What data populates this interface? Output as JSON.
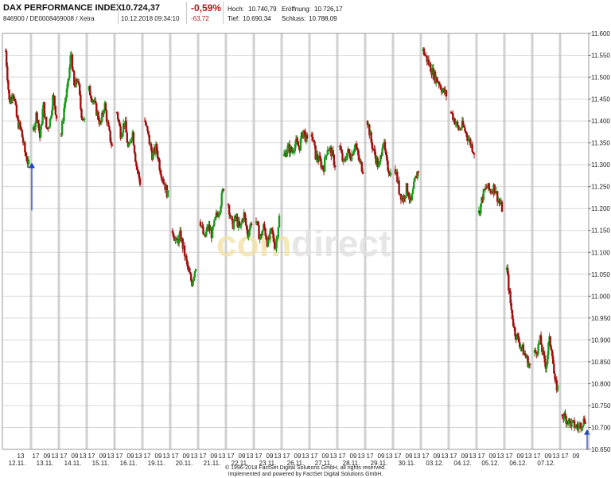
{
  "header": {
    "title": "DAX PERFORMANCE INDEX",
    "subtitle": "846900 / DE0008469008 / Xetra",
    "price": "10.724,37",
    "datetime": "10.12.2018 09:34:10",
    "change_pct": "-0,59%",
    "change_abs": "-63,72",
    "hoch_label": "Hoch:",
    "hoch_value": "10.740,79",
    "eroeffnung_label": "Eröffnung:",
    "eroeffnung_value": "10.726,17",
    "tief_label": "Tief:",
    "tief_value": "10.690,34",
    "schluss_label": "Schluss:",
    "schluss_value": "10.788,09"
  },
  "watermark": {
    "part1": "com",
    "part2": "direct"
  },
  "footer": {
    "line1": "© 1996-2018 FactSet Digital Solutions GmbH, all rights reserved.",
    "line2": "Implemented and powered by FactSet Digital Solutions GmbH."
  },
  "colors": {
    "up": "#1a9a1a",
    "down": "#a01010",
    "grid": "#d8d8d8",
    "day_sep": "#bdbdbd",
    "arrow": "#2244cc"
  },
  "chart_data": {
    "type": "candlestick",
    "ylim": [
      10650,
      11600
    ],
    "yticks": [
      10650,
      10700,
      10750,
      10800,
      10850,
      10900,
      10950,
      11000,
      11050,
      11100,
      11150,
      11200,
      11250,
      11300,
      11350,
      11400,
      11450,
      11500,
      11550,
      11600
    ],
    "ytick_labels": [
      "10.650",
      "10.700",
      "10.750",
      "10.800",
      "10.850",
      "10.900",
      "10.950",
      "11.000",
      "11.050",
      "11.100",
      "11.150",
      "11.200",
      "11.250",
      "11.300",
      "11.350",
      "11.400",
      "11.450",
      "11.500",
      "11.550",
      "11.600"
    ],
    "days": [
      {
        "date": "12.11.",
        "hours": [
          "13"
        ],
        "path": [
          11560,
          11440,
          11470,
          11400,
          11380,
          11330,
          11300
        ]
      },
      {
        "date": "13.11.",
        "hours": [
          "17",
          "09",
          "13"
        ],
        "path": [
          11380,
          11420,
          11360,
          11440,
          11380,
          11400,
          11460,
          11410
        ]
      },
      {
        "date": "14.11.",
        "hours": [
          "17",
          "09",
          "13"
        ],
        "path": [
          11370,
          11440,
          11480,
          11560,
          11470,
          11500,
          11420,
          11400
        ]
      },
      {
        "date": "15.11.",
        "hours": [
          "17",
          "09",
          "13"
        ],
        "path": [
          11470,
          11450,
          11420,
          11390,
          11440,
          11380,
          11340
        ]
      },
      {
        "date": "16.11.",
        "hours": [
          "17",
          "09",
          "13"
        ],
        "path": [
          11420,
          11370,
          11400,
          11330,
          11380,
          11300,
          11260
        ]
      },
      {
        "date": "19.11.",
        "hours": [
          "17",
          "09",
          "13"
        ],
        "path": [
          11400,
          11360,
          11320,
          11340,
          11290,
          11260,
          11230
        ]
      },
      {
        "date": "20.11.",
        "hours": [
          "17",
          "09",
          "13"
        ],
        "path": [
          11150,
          11120,
          11140,
          11100,
          11060,
          11030,
          11070
        ]
      },
      {
        "date": "21.11.",
        "hours": [
          "17",
          "09",
          "13"
        ],
        "path": [
          11170,
          11130,
          11160,
          11140,
          11180,
          11200,
          11250
        ]
      },
      {
        "date": "22.11.",
        "hours": [
          "17",
          "09",
          "13"
        ],
        "path": [
          11210,
          11160,
          11180,
          11150,
          11190,
          11140,
          11170
        ]
      },
      {
        "date": "23.11.",
        "hours": [
          "17",
          "09",
          "13"
        ],
        "path": [
          11170,
          11130,
          11160,
          11120,
          11150,
          11110,
          11180
        ]
      },
      {
        "date": "26.11.",
        "hours": [
          "17",
          "09",
          "13"
        ],
        "path": [
          11320,
          11340,
          11330,
          11350,
          11340,
          11380,
          11350
        ]
      },
      {
        "date": "27.11.",
        "hours": [
          "17",
          "09",
          "13"
        ],
        "path": [
          11370,
          11320,
          11310,
          11290,
          11340,
          11330,
          11300
        ]
      },
      {
        "date": "28.11.",
        "hours": [
          "17",
          "09",
          "13"
        ],
        "path": [
          11340,
          11300,
          11330,
          11320,
          11350,
          11310,
          11290
        ]
      },
      {
        "date": "29.11.",
        "hours": [
          "17",
          "09",
          "13"
        ],
        "path": [
          11400,
          11350,
          11320,
          11290,
          11360,
          11300,
          11280
        ]
      },
      {
        "date": "30.11.",
        "hours": [
          "17",
          "09",
          "13"
        ],
        "path": [
          11290,
          11240,
          11220,
          11250,
          11210,
          11260,
          11290
        ]
      },
      {
        "date": "03.12.",
        "hours": [
          "17",
          "09",
          "13"
        ],
        "path": [
          11560,
          11540,
          11520,
          11500,
          11490,
          11470,
          11460
        ]
      },
      {
        "date": "04.12.",
        "hours": [
          "17",
          "09",
          "13"
        ],
        "path": [
          11420,
          11400,
          11380,
          11390,
          11370,
          11350,
          11330
        ]
      },
      {
        "date": "05.12.",
        "hours": [
          "17",
          "09",
          "13"
        ],
        "path": [
          11190,
          11230,
          11250,
          11240,
          11250,
          11220,
          11200
        ]
      },
      {
        "date": "06.12.",
        "hours": [
          "17",
          "09",
          "13"
        ],
        "path": [
          11060,
          10980,
          10920,
          10900,
          10880,
          10860,
          10840
        ]
      },
      {
        "date": "07.12.",
        "hours": [
          "17",
          "09",
          "13"
        ],
        "path": [
          10870,
          10880,
          10900,
          10860,
          10840,
          10900,
          10880,
          10800,
          10790
        ]
      },
      {
        "date": "",
        "hours": [
          "17",
          "09"
        ],
        "path": [
          10730,
          10710,
          10700,
          10720
        ]
      }
    ],
    "arrows": [
      {
        "day_index": 0,
        "price": 11305,
        "direction": "up"
      },
      {
        "day_index": 20,
        "price": 10696,
        "direction": "up"
      }
    ]
  }
}
